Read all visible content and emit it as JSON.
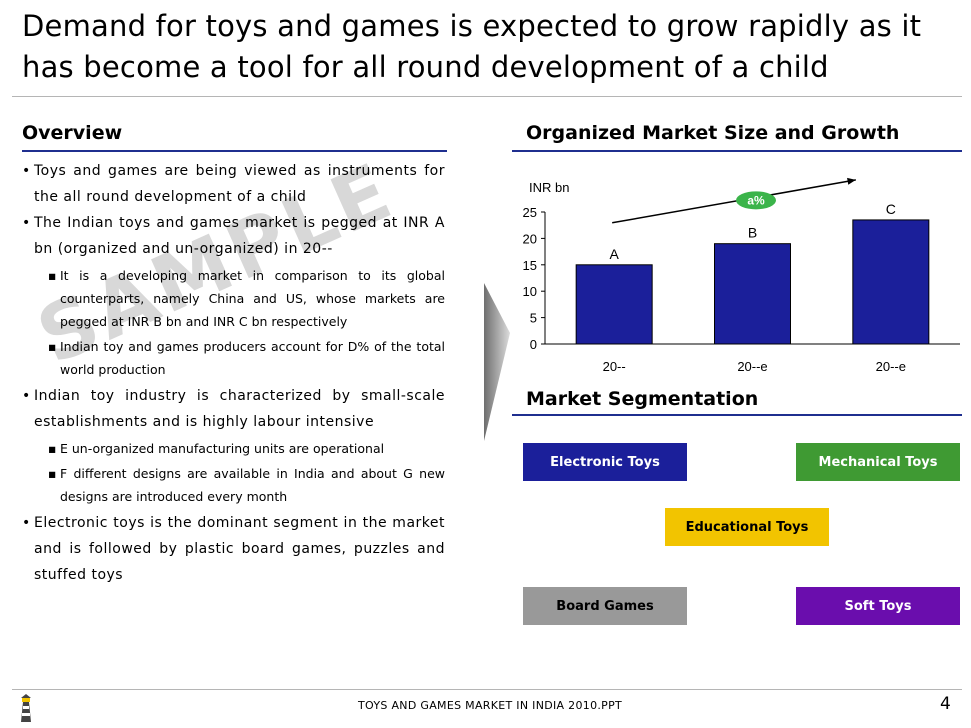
{
  "title": "Demand for toys and games is expected to grow rapidly as it has become a tool for all round development of a child",
  "overview": {
    "heading": "Overview",
    "bullets": [
      {
        "level": 1,
        "text": "Toys and games are being viewed as instruments for the all round development of a child"
      },
      {
        "level": 1,
        "text": "The Indian toys and games market is pegged at INR A bn (organized and un-organized) in 20--"
      },
      {
        "level": 2,
        "text": "It is a developing market in comparison to its global counterparts, namely China and US, whose markets are pegged at INR B bn and INR C bn respectively"
      },
      {
        "level": 2,
        "text": "Indian toy and games producers account for D% of the total world production"
      },
      {
        "level": 1,
        "text": "Indian toy industry is characterized by small-scale establishments and is highly labour intensive"
      },
      {
        "level": 2,
        "text": "E un-organized manufacturing units are operational"
      },
      {
        "level": 2,
        "text": "F different designs are available in India and about G new designs are introduced every month"
      },
      {
        "level": 1,
        "text": "Electronic toys is the dominant segment in the market and is followed by plastic board games, puzzles and stuffed toys"
      }
    ],
    "watermark": "SAMPLE"
  },
  "chart_section": {
    "heading": "Organized Market Size and Growth"
  },
  "chart_data": {
    "type": "bar",
    "ylabel": "INR bn",
    "categories": [
      "20--",
      "20--e",
      "20--e"
    ],
    "values": [
      15,
      19,
      23.5
    ],
    "data_labels": [
      "A",
      "B",
      "C"
    ],
    "ylim": [
      0,
      25
    ],
    "yticks": [
      0,
      5,
      10,
      15,
      20,
      25
    ],
    "growth_label": "a%",
    "bar_color": "#1b1f9a",
    "growth_color": "#3bb44a"
  },
  "segmentation": {
    "heading": "Market Segmentation",
    "segments": [
      {
        "label": "Electronic Toys",
        "bg": "#1b1f9a",
        "fg": "#ffffff"
      },
      {
        "label": "Mechanical Toys",
        "bg": "#3f9a33",
        "fg": "#ffffff"
      },
      {
        "label": "Educational Toys",
        "bg": "#f2c400",
        "fg": "#000000"
      },
      {
        "label": "Board Games",
        "bg": "#999999",
        "fg": "#000000"
      },
      {
        "label": "Soft Toys",
        "bg": "#6a0dad",
        "fg": "#ffffff"
      }
    ]
  },
  "footer": {
    "text": "TOYS AND GAMES MARKET IN INDIA 2010.PPT",
    "page": "4"
  }
}
